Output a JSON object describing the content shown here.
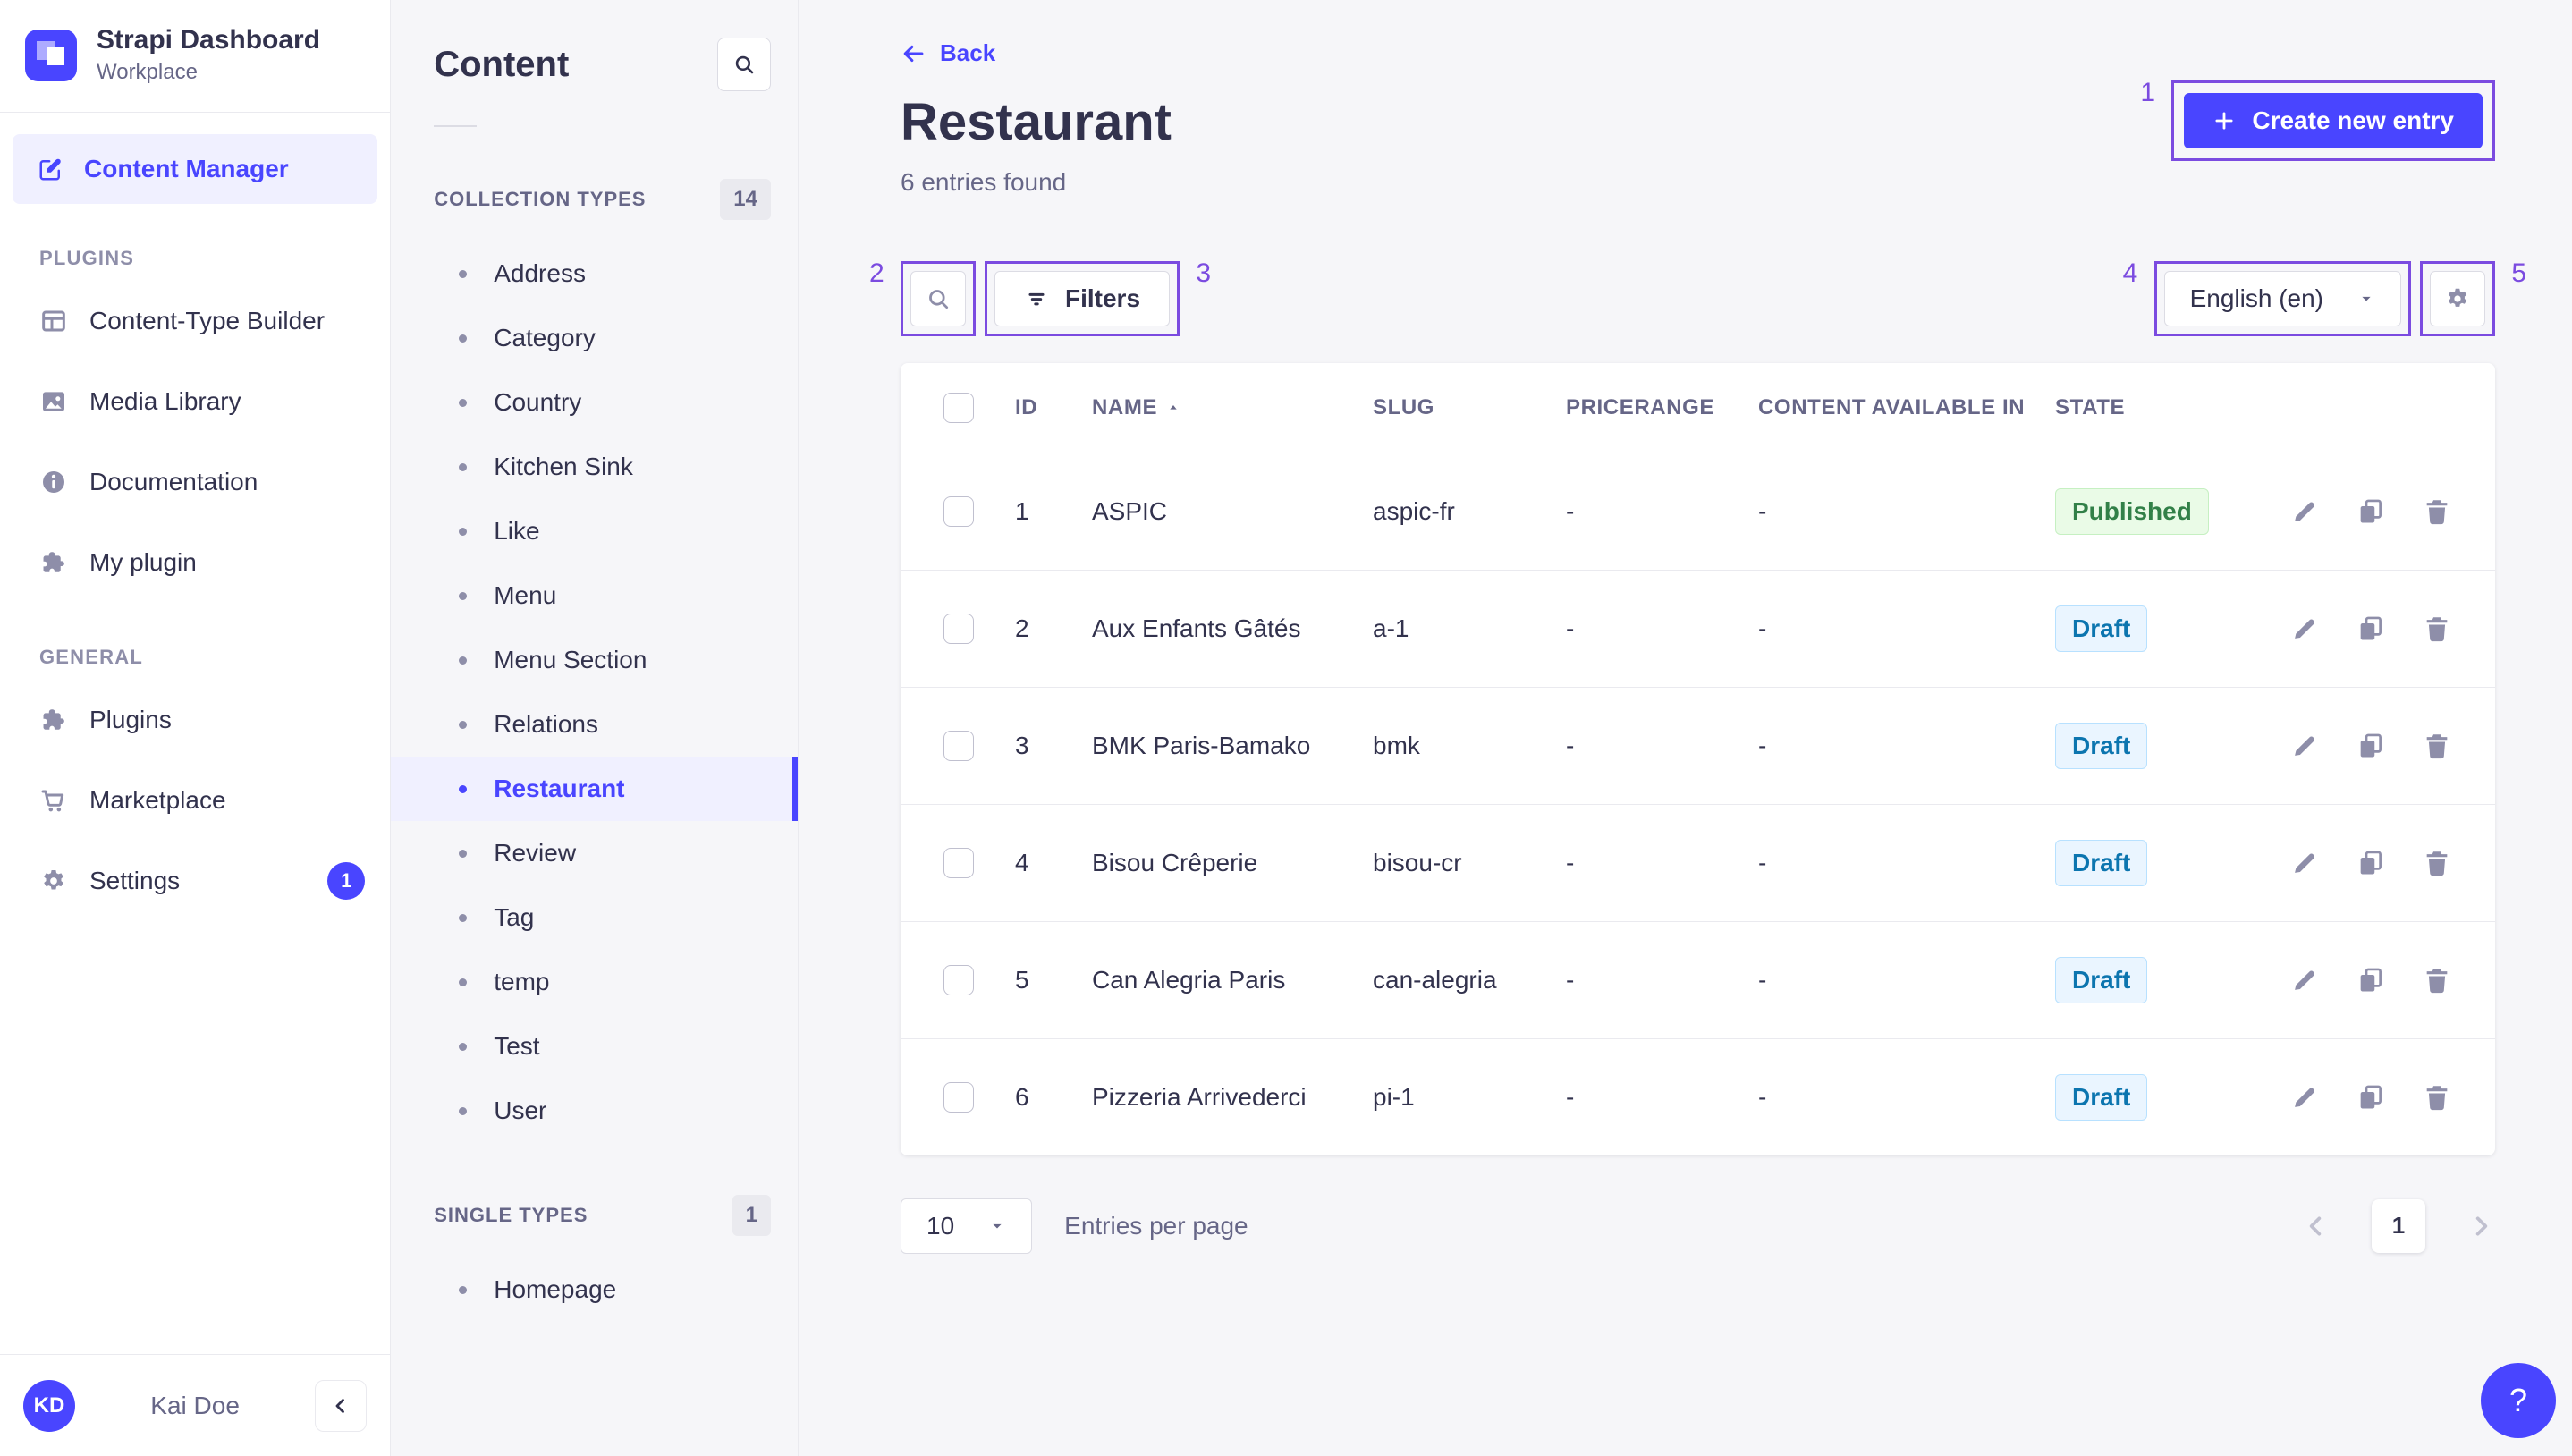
{
  "colors": {
    "accent": "#4945ff",
    "annotation": "#7b4be0",
    "selected_bg": "#f0f0ff",
    "state_styles": {
      "Published": {
        "bg": "#eafbe7",
        "border": "#c6f0c2",
        "text": "#328048"
      },
      "Draft": {
        "bg": "#eaf5ff",
        "border": "#b8e1ff",
        "text": "#0c75af"
      }
    }
  },
  "brand": {
    "app_title": "Strapi Dashboard",
    "workspace": "Workplace",
    "logo_icon": "strapi-logo-icon"
  },
  "sidebar": {
    "content_manager": {
      "label": "Content Manager",
      "icon": "edit-square-icon"
    },
    "sections": [
      {
        "label": "PLUGINS",
        "items": [
          {
            "label": "Content-Type Builder",
            "icon": "layout-icon"
          },
          {
            "label": "Media Library",
            "icon": "image-icon"
          },
          {
            "label": "Documentation",
            "icon": "info-icon"
          },
          {
            "label": "My plugin",
            "icon": "puzzle-icon"
          }
        ]
      },
      {
        "label": "GENERAL",
        "items": [
          {
            "label": "Plugins",
            "icon": "puzzle-icon"
          },
          {
            "label": "Marketplace",
            "icon": "cart-icon"
          },
          {
            "label": "Settings",
            "icon": "gear-icon",
            "badge": "1"
          }
        ]
      }
    ],
    "user": {
      "initials": "KD",
      "name": "Kai Doe"
    }
  },
  "subnav": {
    "title": "Content",
    "groups": [
      {
        "label": "COLLECTION TYPES",
        "count": "14",
        "items": [
          "Address",
          "Category",
          "Country",
          "Kitchen Sink",
          "Like",
          "Menu",
          "Menu Section",
          "Relations",
          "Restaurant",
          "Review",
          "Tag",
          "temp",
          "Test",
          "User"
        ]
      },
      {
        "label": "SINGLE TYPES",
        "count": "1",
        "items": [
          "Homepage"
        ]
      }
    ],
    "selected_item": "Restaurant"
  },
  "header": {
    "back_label": "Back",
    "title": "Restaurant",
    "subtitle": "6 entries found",
    "create_button_label": "Create new entry"
  },
  "toolbar": {
    "filters_label": "Filters",
    "locale_value": "English (en)"
  },
  "annotations": {
    "create": "1",
    "search": "2",
    "filters": "3",
    "locale": "4",
    "settings": "5"
  },
  "table": {
    "columns": [
      "ID",
      "NAME",
      "SLUG",
      "PRICERANGE",
      "CONTENT AVAILABLE IN",
      "STATE"
    ],
    "sorted_column": "NAME",
    "rows": [
      {
        "id": "1",
        "name": "ASPIC",
        "slug": "aspic-fr",
        "pricerange": "-",
        "content_available_in": "-",
        "state": "Published"
      },
      {
        "id": "2",
        "name": "Aux Enfants Gâtés",
        "slug": "a-1",
        "pricerange": "-",
        "content_available_in": "-",
        "state": "Draft"
      },
      {
        "id": "3",
        "name": "BMK Paris-Bamako",
        "slug": "bmk",
        "pricerange": "-",
        "content_available_in": "-",
        "state": "Draft"
      },
      {
        "id": "4",
        "name": "Bisou Crêperie",
        "slug": "bisou-cr",
        "pricerange": "-",
        "content_available_in": "-",
        "state": "Draft"
      },
      {
        "id": "5",
        "name": "Can Alegria Paris",
        "slug": "can-alegria",
        "pricerange": "-",
        "content_available_in": "-",
        "state": "Draft"
      },
      {
        "id": "6",
        "name": "Pizzeria Arrivederci",
        "slug": "pi-1",
        "pricerange": "-",
        "content_available_in": "-",
        "state": "Draft"
      }
    ]
  },
  "pagination": {
    "page_size": "10",
    "entries_per_page_label": "Entries per page",
    "current_page": "1"
  },
  "help": {
    "label": "?"
  }
}
